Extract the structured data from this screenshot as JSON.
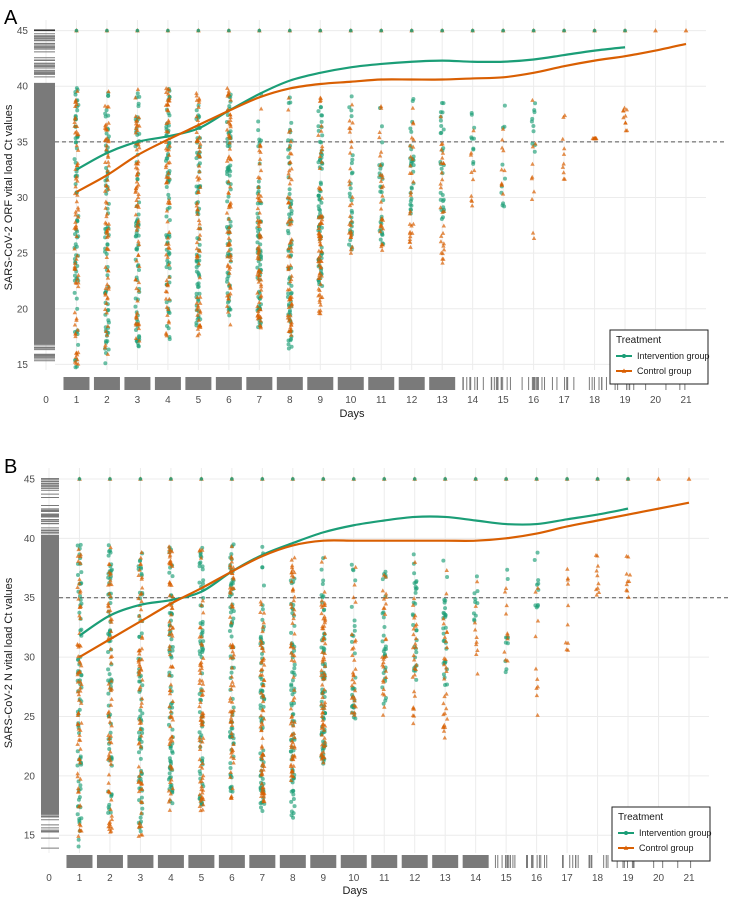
{
  "colors": {
    "intervention": "#1b9e77",
    "control": "#d95f02",
    "rug": "#7a7a7a",
    "reference_line": "#555555",
    "grid": "#ececec"
  },
  "chart_data": [
    {
      "panel_label": "A",
      "type": "scatter",
      "ylabel": "SARS-CoV-2 ORF vital load Ct values",
      "xlabel": "Days",
      "xlim": [
        0,
        21
      ],
      "ylim": [
        14.5,
        45.5
      ],
      "x_ticks": [
        "0",
        "1",
        "2",
        "3",
        "4",
        "5",
        "6",
        "7",
        "8",
        "9",
        "10",
        "11",
        "12",
        "13",
        "14",
        "15",
        "16",
        "17",
        "18",
        "19",
        "20",
        "21"
      ],
      "y_ticks": [
        "15",
        "20",
        "25",
        "30",
        "35",
        "40",
        "45"
      ],
      "reference_line_y": 35,
      "grid": true,
      "legend": {
        "title": "Treatment",
        "position": "bottom-right",
        "entries": [
          "Intervention group",
          "Control group"
        ]
      },
      "series": [
        {
          "name": "Intervention group",
          "smooth_x": [
            1,
            2,
            3,
            4,
            5,
            6,
            7,
            8,
            9,
            10,
            11,
            12,
            13,
            14,
            15,
            16,
            17,
            18,
            19
          ],
          "smooth_y": [
            32.5,
            34.0,
            35.0,
            35.5,
            36.2,
            37.8,
            39.3,
            40.5,
            41.2,
            41.7,
            42.0,
            42.2,
            42.3,
            42.2,
            42.2,
            42.4,
            42.8,
            43.2,
            43.5
          ],
          "point_range": {
            "1": [
              14.6,
              39.9
            ],
            "2": [
              15.0,
              39.6
            ],
            "3": [
              16.5,
              39.9
            ],
            "4": [
              17.0,
              39.8
            ],
            "5": [
              18.5,
              39.6
            ],
            "6": [
              19.0,
              39.9
            ],
            "7": [
              18.0,
              39.8
            ],
            "8": [
              16.0,
              39.8
            ],
            "9": [
              22.0,
              39.6
            ],
            "10": [
              24.5,
              39.4
            ],
            "11": [
              25.0,
              39.3
            ],
            "12": [
              28.0,
              39.2
            ],
            "13": [
              28.0,
              39.3
            ],
            "14": [
              33.0,
              39.2
            ],
            "15": [
              29.0,
              39.3
            ],
            "16": [
              34.0,
              39.3
            ]
          }
        },
        {
          "name": "Control group",
          "smooth_x": [
            1,
            2,
            3,
            4,
            5,
            6,
            7,
            8,
            9,
            10,
            11,
            12,
            13,
            14,
            15,
            16,
            17,
            18,
            19,
            20,
            21
          ],
          "smooth_y": [
            30.5,
            32.0,
            33.8,
            35.2,
            36.5,
            37.8,
            39.0,
            39.8,
            40.2,
            40.4,
            40.6,
            40.6,
            40.6,
            40.7,
            40.8,
            41.2,
            41.8,
            42.3,
            42.7,
            43.2,
            43.8
          ],
          "point_range": {
            "1": [
              15.0,
              39.9
            ],
            "2": [
              15.5,
              39.6
            ],
            "3": [
              16.5,
              39.9
            ],
            "4": [
              17.5,
              39.8
            ],
            "5": [
              17.5,
              39.6
            ],
            "6": [
              18.5,
              39.9
            ],
            "7": [
              18.0,
              39.8
            ],
            "8": [
              17.5,
              39.8
            ],
            "9": [
              19.5,
              39.6
            ],
            "10": [
              24.5,
              39.4
            ],
            "11": [
              25.0,
              39.3
            ],
            "12": [
              25.5,
              39.2
            ],
            "13": [
              24.0,
              39.3
            ],
            "14": [
              29.0,
              39.2
            ],
            "15": [
              30.0,
              39.3
            ],
            "16": [
              25.8,
              39.3
            ],
            "17": [
              31.5,
              38.3
            ],
            "18": [
              35.3,
              35.3
            ],
            "19": [
              35.8,
              39.0
            ]
          },
          "top_marker_days": [
            1,
            2,
            3,
            4,
            5,
            6,
            7,
            8,
            9,
            10,
            11,
            12,
            13,
            14,
            15,
            16,
            17,
            18,
            19,
            20,
            21
          ]
        }
      ],
      "x_rug_days": [
        1,
        2,
        3,
        4,
        5,
        6,
        7,
        8,
        9,
        10,
        11,
        12,
        13,
        14,
        15,
        16,
        17,
        18,
        19,
        20,
        21
      ]
    },
    {
      "panel_label": "B",
      "type": "scatter",
      "ylabel": "SARS-CoV-2 N vital load Ct values",
      "xlabel": "Days",
      "xlim": [
        0,
        21
      ],
      "ylim": [
        13.5,
        45.5
      ],
      "x_ticks": [
        "0",
        "1",
        "2",
        "3",
        "4",
        "5",
        "6",
        "7",
        "8",
        "9",
        "10",
        "11",
        "12",
        "13",
        "14",
        "15",
        "16",
        "17",
        "18",
        "19",
        "20",
        "21"
      ],
      "y_ticks": [
        "15",
        "20",
        "25",
        "30",
        "35",
        "40",
        "45"
      ],
      "reference_line_y": 35,
      "grid": true,
      "legend": {
        "title": "Treatment",
        "position": "bottom-right",
        "entries": [
          "Intervention group",
          "Control group"
        ]
      },
      "series": [
        {
          "name": "Intervention group",
          "smooth_x": [
            1,
            2,
            3,
            4,
            5,
            6,
            7,
            8,
            9,
            10,
            11,
            12,
            13,
            14,
            15,
            16,
            17,
            18,
            19
          ],
          "smooth_y": [
            31.8,
            33.5,
            34.4,
            34.8,
            35.5,
            37.2,
            38.6,
            39.6,
            40.5,
            41.1,
            41.5,
            41.8,
            41.8,
            41.5,
            41.2,
            41.2,
            41.6,
            42.0,
            42.5
          ],
          "point_range": {
            "1": [
              14.0,
              39.5
            ],
            "2": [
              15.5,
              39.5
            ],
            "3": [
              15.0,
              39.3
            ],
            "4": [
              17.5,
              39.4
            ],
            "5": [
              17.5,
              39.4
            ],
            "6": [
              18.5,
              39.5
            ],
            "7": [
              17.0,
              39.6
            ],
            "8": [
              16.0,
              39.5
            ],
            "9": [
              21.0,
              39.5
            ],
            "10": [
              24.5,
              39.3
            ],
            "11": [
              25.5,
              39.2
            ],
            "12": [
              28.0,
              39.2
            ],
            "13": [
              27.5,
              39.2
            ],
            "14": [
              32.5,
              39.1
            ],
            "15": [
              28.5,
              39.1
            ],
            "16": [
              34.0,
              39.1
            ]
          }
        },
        {
          "name": "Control group",
          "smooth_x": [
            1,
            2,
            3,
            4,
            5,
            6,
            7,
            8,
            9,
            10,
            11,
            12,
            13,
            14,
            15,
            16,
            17,
            18,
            19,
            20,
            21
          ],
          "smooth_y": [
            30.0,
            31.5,
            33.0,
            34.5,
            35.8,
            37.2,
            38.5,
            39.4,
            39.8,
            39.8,
            39.8,
            39.8,
            39.8,
            39.8,
            40.0,
            40.4,
            41.0,
            41.5,
            42.0,
            42.5,
            43.0
          ],
          "point_range": {
            "1": [
              14.5,
              39.5
            ],
            "2": [
              15.0,
              39.5
            ],
            "3": [
              14.8,
              39.3
            ],
            "4": [
              17.0,
              39.4
            ],
            "5": [
              17.0,
              39.4
            ],
            "6": [
              18.0,
              39.5
            ],
            "7": [
              17.5,
              39.6
            ],
            "8": [
              19.5,
              39.5
            ],
            "9": [
              21.0,
              39.5
            ],
            "10": [
              24.5,
              39.3
            ],
            "11": [
              25.0,
              39.2
            ],
            "12": [
              24.0,
              39.2
            ],
            "13": [
              23.0,
              39.2
            ],
            "14": [
              28.0,
              39.1
            ],
            "15": [
              29.0,
              39.1
            ],
            "16": [
              25.0,
              39.1
            ],
            "17": [
              30.5,
              39.0
            ],
            "18": [
              35.0,
              39.0
            ],
            "19": [
              35.0,
              39.0
            ]
          },
          "top_marker_days": [
            1,
            2,
            3,
            4,
            5,
            6,
            7,
            8,
            9,
            10,
            11,
            12,
            13,
            14,
            15,
            16,
            17,
            18,
            19,
            20,
            21
          ]
        }
      ],
      "x_rug_days": [
        1,
        2,
        3,
        4,
        5,
        6,
        7,
        8,
        9,
        10,
        11,
        12,
        13,
        14,
        15,
        16,
        17,
        18,
        19,
        20,
        21
      ]
    }
  ]
}
